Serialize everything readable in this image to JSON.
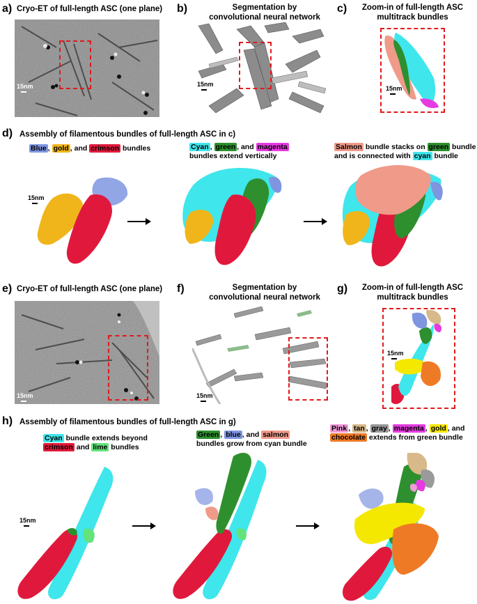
{
  "panel_a": {
    "letter": "a)",
    "title": "Cryo-ET of full-length ASC (one plane)",
    "scale": "15nm"
  },
  "panel_b": {
    "letter": "b)",
    "title_line1": "Segmentation by",
    "title_line2": "convolutional neural network",
    "scale": "15nm"
  },
  "panel_c": {
    "letter": "c)",
    "title_line1": "Zoom-in of full-length ASC",
    "title_line2": "multitrack bundles",
    "scale": "15nm"
  },
  "panel_d": {
    "letter": "d)",
    "title": "Assembly of filamentous bundles of full-length ASC in c)",
    "scale": "15nm",
    "cap1": {
      "w1": "Blue",
      "s1": ", ",
      "w2": "gold",
      "s2": ", and ",
      "w3": "crimson",
      "s3": " bundles"
    },
    "cap2": {
      "w1": "Cyan",
      "s1": ", ",
      "w2": "green",
      "s2": ", and ",
      "w3": "magenta",
      "line2": "bundles extend vertically"
    },
    "cap3": {
      "w1": "Salmon",
      "s1": " bundle stacks on ",
      "w2": "green",
      "s2": " bundle",
      "line2a": "and is connected with ",
      "w3": "cyan",
      "line2b": " bundle"
    }
  },
  "panel_e": {
    "letter": "e)",
    "title": "Cryo-ET of full-length ASC (one plane)",
    "scale": "15nm"
  },
  "panel_f": {
    "letter": "f)",
    "title_line1": "Segmentation by",
    "title_line2": "convolutional neural network",
    "scale": "15nm"
  },
  "panel_g": {
    "letter": "g)",
    "title_line1": "Zoom-in of full-length ASC",
    "title_line2": "multitrack bundles",
    "scale": "15nm"
  },
  "panel_h": {
    "letter": "h)",
    "title": "Assembly of filamentous bundles of full-length ASC in g)",
    "scale": "15nm",
    "cap1": {
      "w1": "Cyan",
      "s1": " bundle extends beyond",
      "w2": "crimson",
      "s2": " and ",
      "w3": "lime",
      "s3": " bundles"
    },
    "cap2": {
      "w1": "Green",
      "s1": ", ",
      "w2": "blue",
      "s2": ", and ",
      "w3": "salmon",
      "line2": "bundles grow from cyan bundle"
    },
    "cap3": {
      "w1": "Pink",
      "s1": ", ",
      "w2": "tan",
      "s2": ", ",
      "w3": "gray",
      "s3": ", ",
      "w4": "magenta",
      "s4": ", ",
      "w5": "gold",
      "s5": ", and",
      "w6": "chocolate",
      "s6": " extends from green bundle"
    }
  },
  "colors": {
    "blue": "#7f95e0",
    "gold": "#f0b51a",
    "crimson": "#e0193c",
    "cyan": "#3fe6ec",
    "green": "#2e8f2e",
    "magenta": "#e63be0",
    "salmon": "#f09a8a",
    "lime": "#63e37a",
    "pink": "#f09ad8",
    "tan": "#d7b98a",
    "gray": "#9a9a9a",
    "yellow": "#f5e800",
    "chocolate": "#ef7a26",
    "red_box": "#e0191b"
  }
}
